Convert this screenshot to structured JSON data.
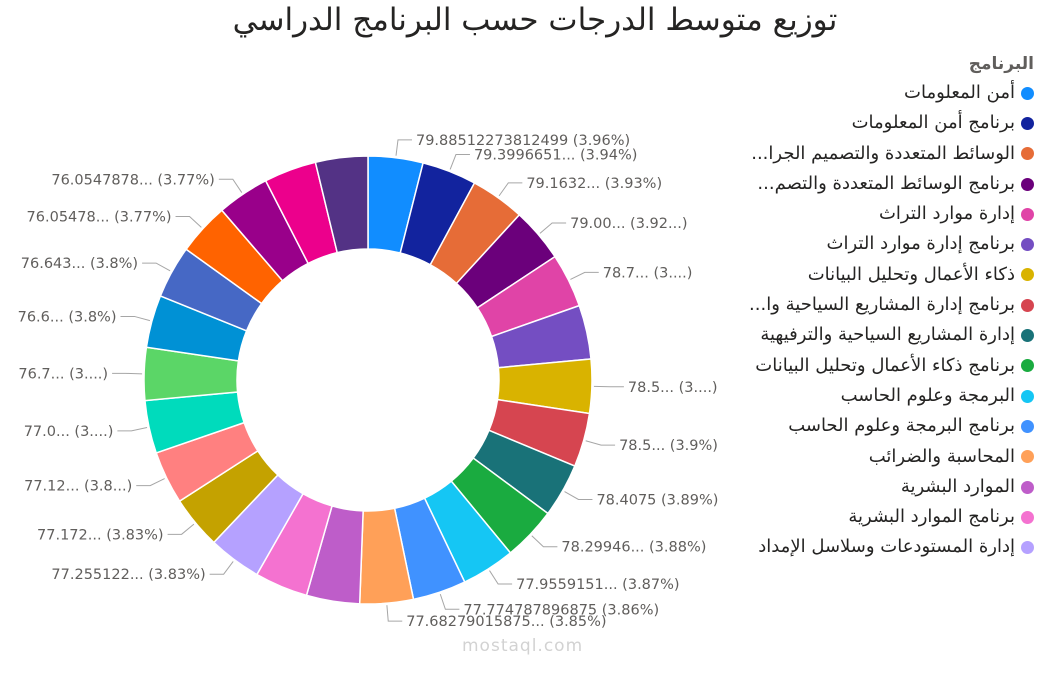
{
  "chart_data": {
    "type": "donut",
    "title": "توزيع متوسط الدرجات حسب البرنامج الدراسي",
    "legend_title": "البرنامج",
    "legend_position": "right",
    "slices": [
      {
        "name": "أمن المعلومات",
        "value": 79.88512273812499,
        "label": "79.88512273812499 (3.96%)",
        "color": "#118DFF"
      },
      {
        "name": "برنامج أمن المعلومات",
        "value": 79.3996651,
        "label": "79.3996651... (3.94%)",
        "color": "#12239E"
      },
      {
        "name": "الوسائط المتعددة والتصميم الجرا...",
        "value": 79.1632,
        "label": "79.1632... (3.93%)",
        "color": "#E66C37"
      },
      {
        "name": "برنامج الوسائط المتعددة والتصم...",
        "value": 79.0,
        "label": "79.00... (3.92...)",
        "color": "#6B007B"
      },
      {
        "name": "إدارة موارد التراث",
        "value": 78.7,
        "label": "78.7... (3....)",
        "color": "#E044A7"
      },
      {
        "name": "برنامج إدارة موارد التراث",
        "value": 78.6,
        "label": "",
        "color": "#744EC2"
      },
      {
        "name": "ذكاء الأعمال وتحليل البيانات",
        "value": 78.5,
        "label": "78.5... (3....)",
        "color": "#D9B300"
      },
      {
        "name": "برنامج إدارة المشاريع السياحية وا...",
        "value": 78.5,
        "label": "78.5... (3.9%)",
        "color": "#D64550"
      },
      {
        "name": "إدارة المشاريع السياحية والترفيهية",
        "value": 78.4075,
        "label": "78.4075 (3.89%)",
        "color": "#197278"
      },
      {
        "name": "برنامج ذكاء الأعمال وتحليل البيانات",
        "value": 78.29946,
        "label": "78.29946... (3.88%)",
        "color": "#1AAB40"
      },
      {
        "name": "البرمجة وعلوم الحاسب",
        "value": 77.9559151,
        "label": "77.9559151... (3.87%)",
        "color": "#15C6F4"
      },
      {
        "name": "برنامج البرمجة وعلوم الحاسب",
        "value": 77.774787896875,
        "label": "77.774787896875 (3.86%)",
        "color": "#4092FF"
      },
      {
        "name": "المحاسبة والضرائب",
        "value": 77.68279015875,
        "label": "77.68279015875... (3.85%)",
        "color": "#FFA058"
      },
      {
        "name": "الموارد البشرية",
        "value": 77.5,
        "label": "",
        "color": "#BE5DC9"
      },
      {
        "name": "برنامج الموارد البشرية",
        "value": 77.4,
        "label": "",
        "color": "#F472D0"
      },
      {
        "name": "إدارة المستودعات وسلاسل الإمداد",
        "value": 77.255122,
        "label": "77.255122... (3.83%)",
        "color": "#B5A1FF"
      },
      {
        "name": "",
        "value": 77.172,
        "label": "77.172... (3.83%)",
        "color": "#C4A200"
      },
      {
        "name": "",
        "value": 77.12,
        "label": "77.12... (3.8...)",
        "color": "#FF8080"
      },
      {
        "name": "",
        "value": 77.0,
        "label": "77.0... (3....)",
        "color": "#00DBBC"
      },
      {
        "name": "",
        "value": 76.7,
        "label": "76.7... (3....)",
        "color": "#5BD667"
      },
      {
        "name": "",
        "value": 76.6,
        "label": "76.6... (3.8%)",
        "color": "#0091D5"
      },
      {
        "name": "",
        "value": 76.643,
        "label": "76.643... (3.8%)",
        "color": "#4668C5"
      },
      {
        "name": "",
        "value": 76.05478,
        "label": "76.05478... (3.77%)",
        "color": "#FF6300"
      },
      {
        "name": "",
        "value": 76.0547878,
        "label": "76.0547878... (3.77%)",
        "color": "#99008A"
      },
      {
        "name": "",
        "value": 76.3,
        "label": "",
        "color": "#EC008C"
      },
      {
        "name": "",
        "value": 76.2,
        "label": "",
        "color": "#533285"
      }
    ]
  },
  "legend_items": [
    "أمن المعلومات",
    "برنامج أمن المعلومات",
    "الوسائط المتعددة والتصميم الجرا...",
    "برنامج الوسائط المتعددة والتصم...",
    "إدارة موارد التراث",
    "برنامج إدارة موارد التراث",
    "ذكاء الأعمال وتحليل البيانات",
    "برنامج إدارة المشاريع السياحية وا...",
    "إدارة المشاريع السياحية والترفيهية",
    "برنامج ذكاء الأعمال وتحليل البيانات",
    "البرمجة وعلوم الحاسب",
    "برنامج البرمجة وعلوم الحاسب",
    "المحاسبة والضرائب",
    "الموارد البشرية",
    "برنامج الموارد البشرية",
    "إدارة المستودعات وسلاسل الإمداد"
  ],
  "watermark": "mostaql.com"
}
